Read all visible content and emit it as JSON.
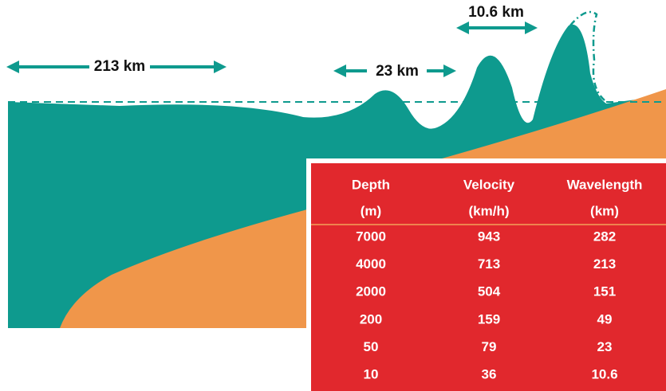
{
  "labels": [
    "213 km",
    "23 km",
    "10.6 km"
  ],
  "table": {
    "header": [
      {
        "name": "Depth",
        "unit": "(m)"
      },
      {
        "name": "Velocity",
        "unit": "(km/h)"
      },
      {
        "name": "Wavelength",
        "unit": "(km)"
      }
    ],
    "rows": [
      [
        7000,
        943,
        282
      ],
      [
        4000,
        713,
        213
      ],
      [
        2000,
        504,
        151
      ],
      [
        200,
        159,
        49
      ],
      [
        50,
        79,
        23
      ],
      [
        10,
        36,
        10.6
      ]
    ]
  }
}
